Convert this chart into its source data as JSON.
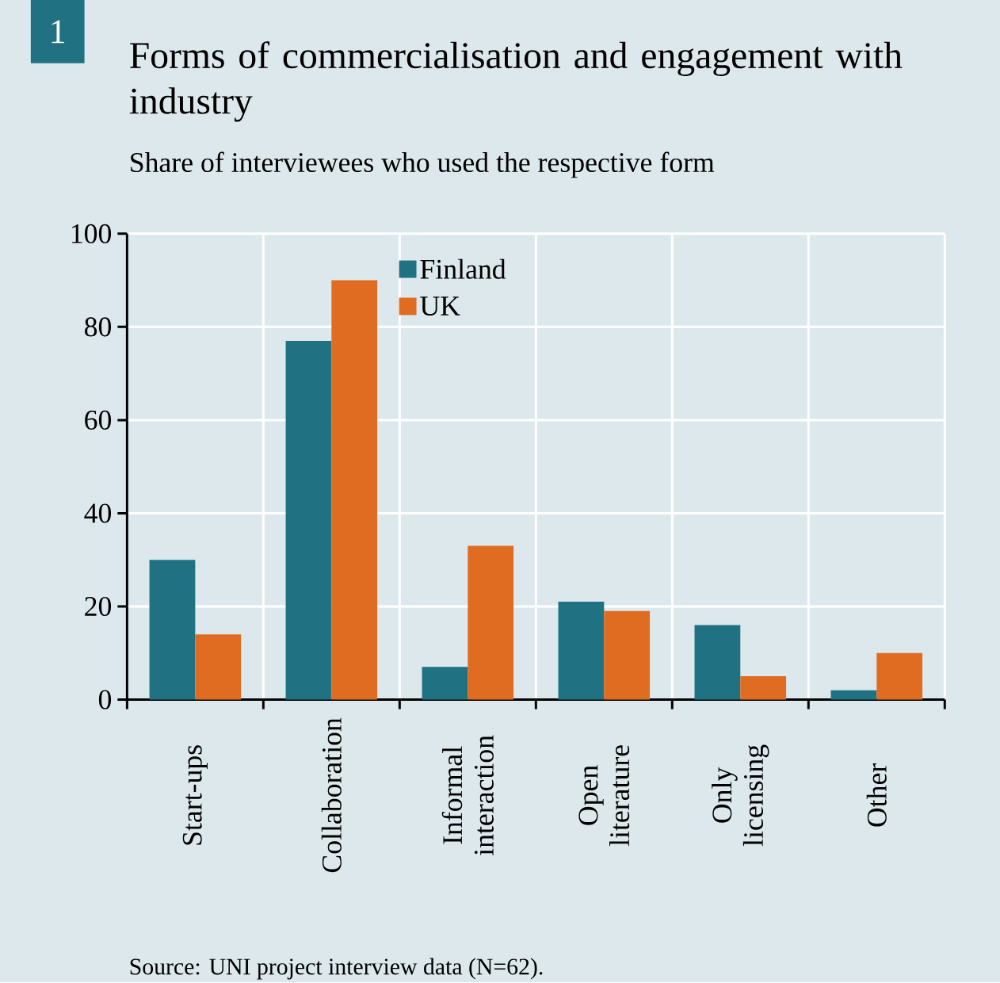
{
  "chart_data": {
    "type": "bar",
    "title": "Forms of commercialisation and engagement with industry",
    "subtitle": "Share of interviewees who used the respective form",
    "categories": [
      "Start-ups",
      "Collaboration",
      "Informal interaction",
      "Open literature",
      "Only licensing",
      "Other"
    ],
    "series": [
      {
        "name": "Finland",
        "color": "#207283",
        "values": [
          30,
          77,
          7,
          21,
          16,
          2
        ]
      },
      {
        "name": "UK",
        "color": "#e06c22",
        "values": [
          14,
          90,
          33,
          19,
          5,
          10
        ]
      }
    ],
    "ylim": [
      0,
      100
    ],
    "yticks": [
      0,
      20,
      40,
      60,
      80,
      100
    ],
    "grid": true,
    "legend": "top",
    "annotations": [
      "1",
      "Source: UNI project interview data (N=62)."
    ]
  }
}
